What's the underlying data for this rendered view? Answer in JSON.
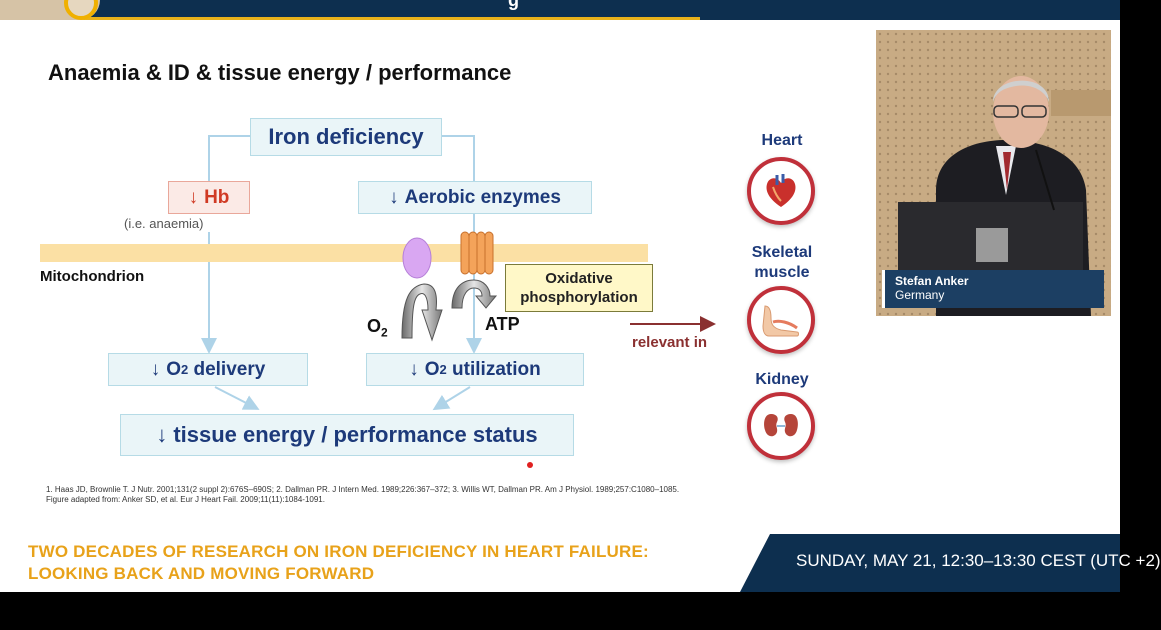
{
  "slide": {
    "title": "Anaemia & ID & tissue energy / performance",
    "iron_deficiency": "Iron deficiency",
    "hb_arrow": "↓",
    "hb": "Hb",
    "anaemia_note": "(i.e. anaemia)",
    "aerobic_arrow": "↓",
    "aerobic_enzymes": "Aerobic enzymes",
    "mitochondrion": "Mitochondrion",
    "oxidative_line1": "Oxidative",
    "oxidative_line2": "phosphorylation",
    "o2": "O",
    "o2_sub": "2",
    "atp": "ATP",
    "delivery_arrow": "↓",
    "delivery_pre": "O",
    "delivery_sub": "2",
    "delivery_post": " delivery",
    "utilization_arrow": "↓",
    "utilization_pre": "O",
    "utilization_sub": "2",
    "utilization_post": " utilization",
    "tissue_arrow": "↓",
    "tissue_status": "tissue energy / performance status",
    "relevant_in": "relevant in",
    "refs_line1": "1. Haas JD, Brownlie T. J Nutr. 2001;131(2 suppl 2):676S–690S; 2. Dallman PR. J Intern Med. 1989;226:367–372; 3. Willis WT, Dallman PR. Am J Physiol. 1989;257:C1080–1085.",
    "refs_line2": "Figure adapted from: Anker SD, et al. Eur J Heart Fail. 2009;11(11):1084-1091."
  },
  "organs": {
    "heart": "Heart",
    "skeletal_line1": "Skeletal",
    "skeletal_line2": "muscle",
    "kidney": "Kidney",
    "heart_icon": "heart-icon",
    "muscle_icon": "foot-muscle-icon",
    "kidney_icon": "kidney-icon"
  },
  "video": {
    "speaker_name": "Stefan Anker",
    "speaker_country": "Germany"
  },
  "banner": {
    "top_title_fragment": "g",
    "session_title": "TWO DECADES OF RESEARCH ON IRON DEFICIENCY IN HEART FAILURE: LOOKING BACK AND MOVING FORWARD",
    "date": "SUNDAY, MAY 21, 12:30–13:30 CEST (UTC +2)"
  },
  "colors": {
    "navy": "#0d2f4f",
    "gold": "#e8b11a",
    "box_fill": "#eaf5f8",
    "box_text": "#1d3a7a",
    "hb_red": "#d03a24",
    "organ_ring": "#c0303a"
  }
}
